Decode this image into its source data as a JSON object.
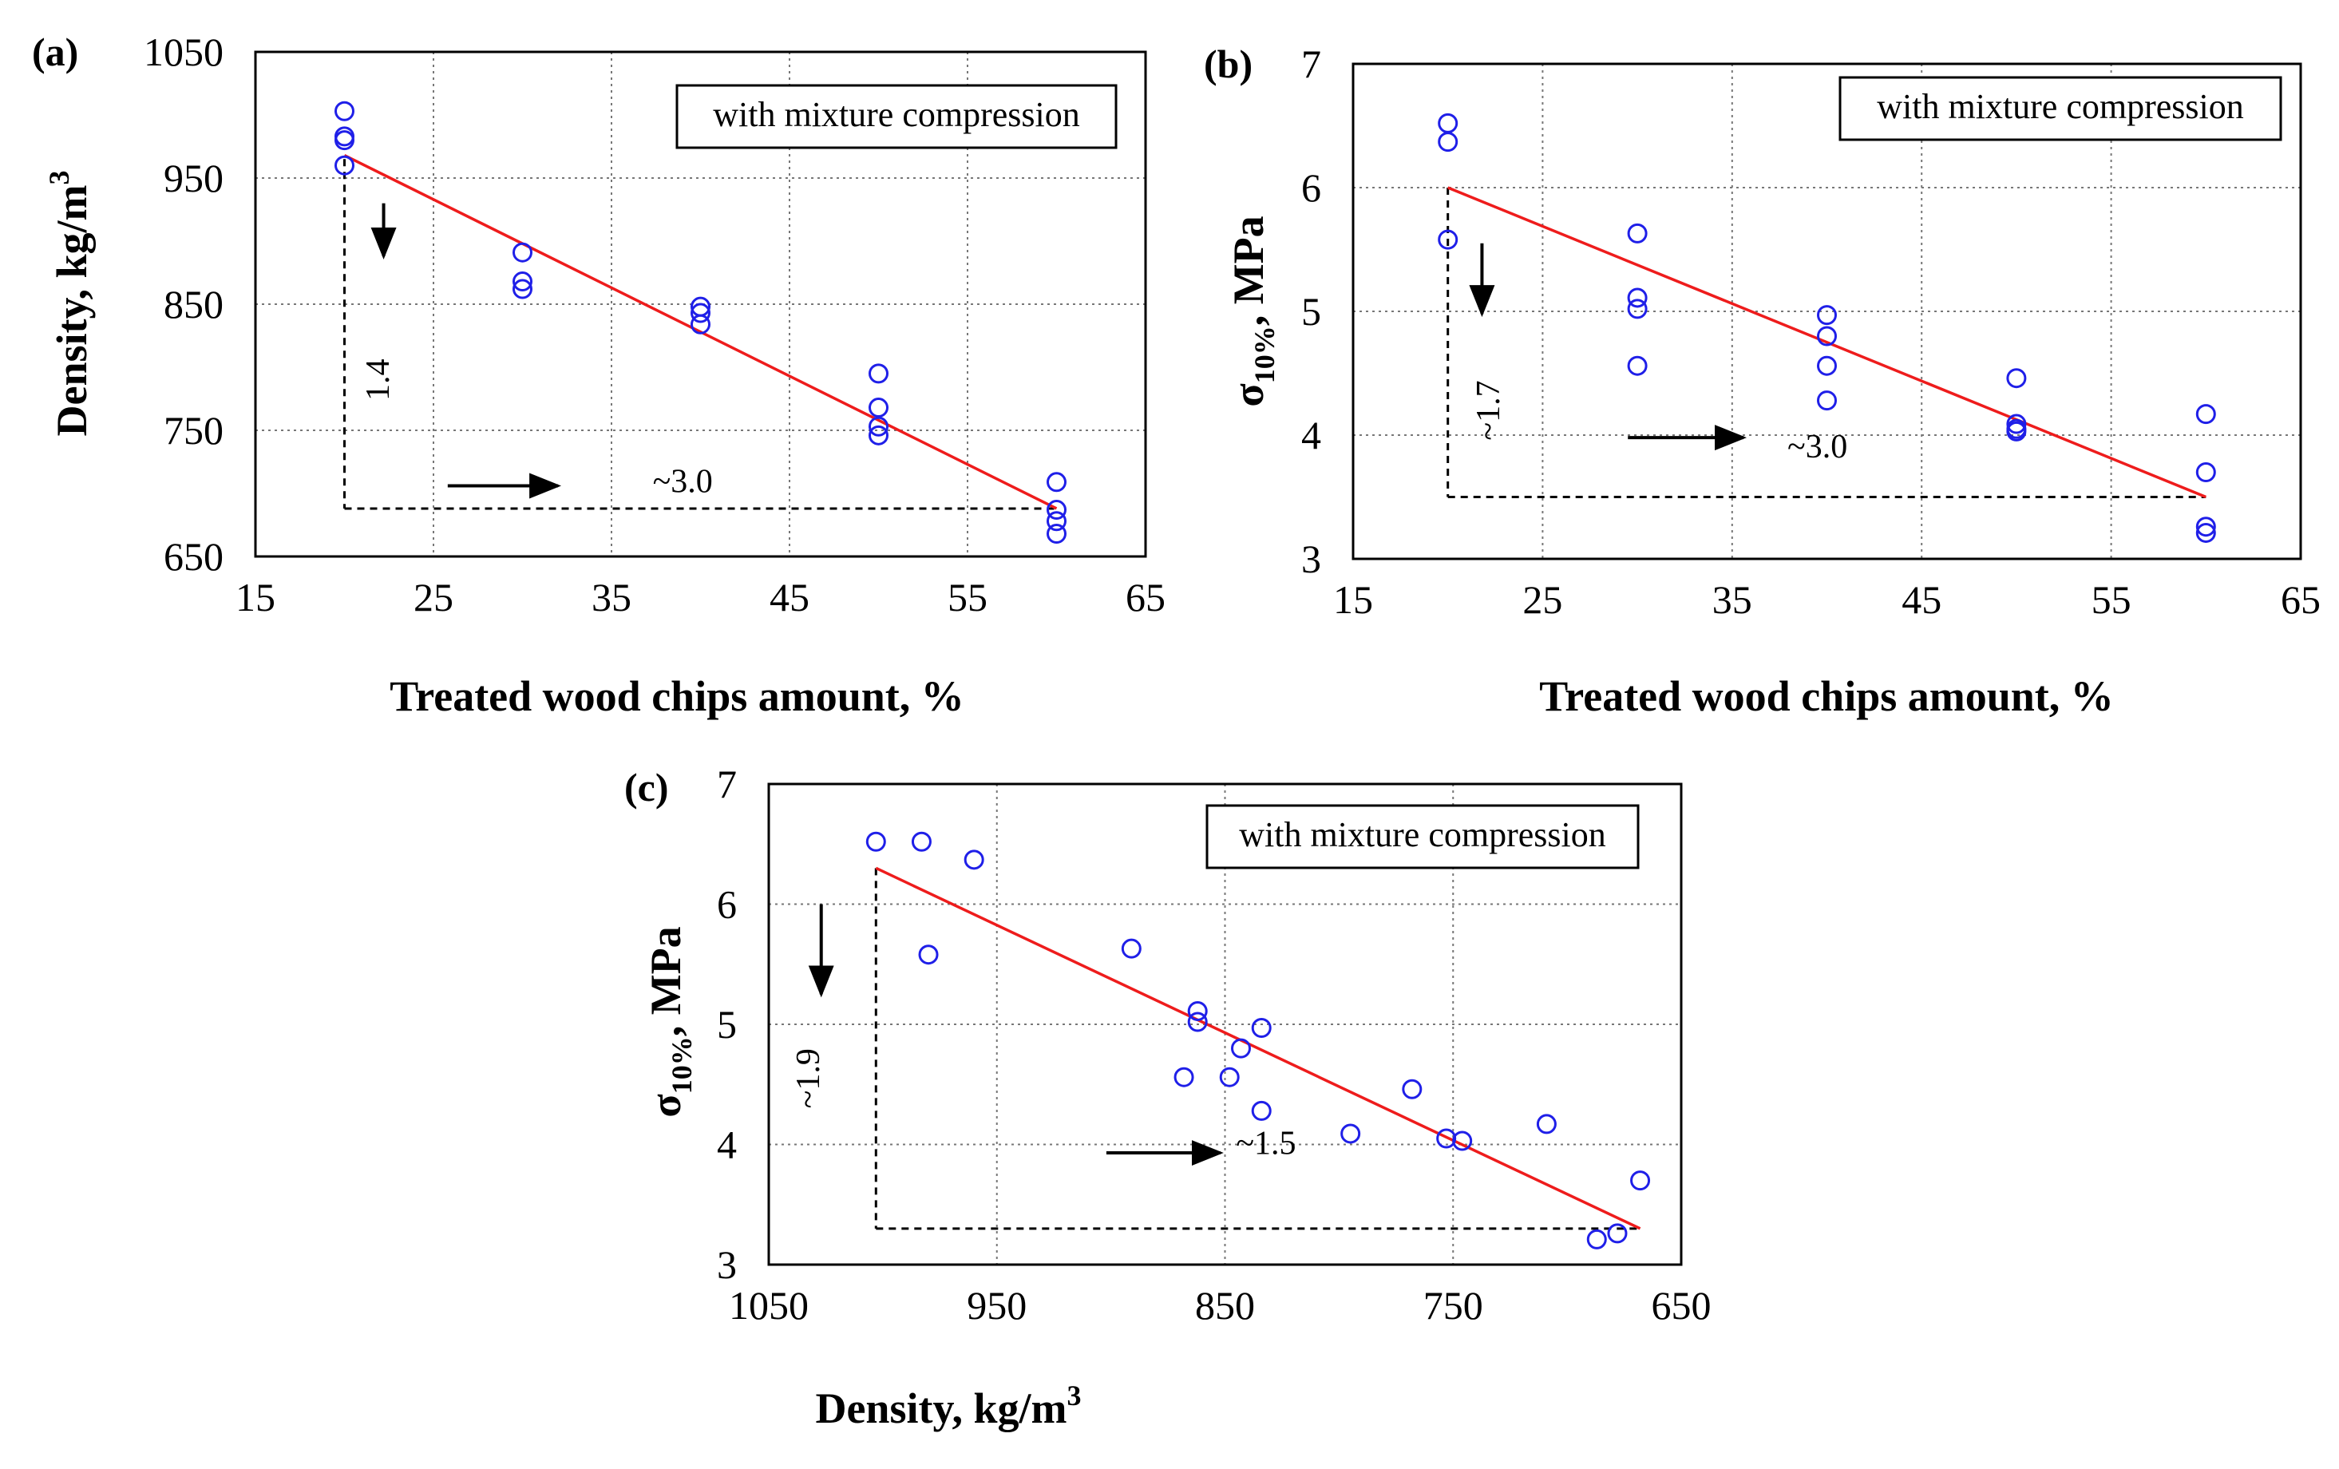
{
  "chart_data": [
    {
      "panel_label": "(a)",
      "type": "scatter",
      "legend": "with mixture compression",
      "xlabel": "Treated wood chips amount, %",
      "ylabel": "Density, kg/m",
      "ylabel_sup": "3",
      "xlim": [
        15,
        65
      ],
      "ylim": [
        650,
        1050
      ],
      "xticks": [
        15,
        25,
        35,
        45,
        55,
        65
      ],
      "yticks": [
        650,
        750,
        850,
        950,
        1050
      ],
      "grid": true,
      "points": [
        {
          "x": 20,
          "y": 1003
        },
        {
          "x": 20,
          "y": 983
        },
        {
          "x": 20,
          "y": 980
        },
        {
          "x": 20,
          "y": 960
        },
        {
          "x": 30,
          "y": 891
        },
        {
          "x": 30,
          "y": 868
        },
        {
          "x": 30,
          "y": 862
        },
        {
          "x": 40,
          "y": 848
        },
        {
          "x": 40,
          "y": 843
        },
        {
          "x": 40,
          "y": 834
        },
        {
          "x": 50,
          "y": 795
        },
        {
          "x": 50,
          "y": 768
        },
        {
          "x": 50,
          "y": 753
        },
        {
          "x": 50,
          "y": 746
        },
        {
          "x": 60,
          "y": 709
        },
        {
          "x": 60,
          "y": 687
        },
        {
          "x": 60,
          "y": 678
        },
        {
          "x": 60,
          "y": 668
        }
      ],
      "trend": {
        "x1": 20,
        "y1": 968,
        "x2": 60,
        "y2": 688
      },
      "guide": {
        "x1": 20,
        "y1": 965,
        "x2": 60,
        "y2": 688
      },
      "annotations": [
        {
          "text": "1.4",
          "x": 22.5,
          "y": 790,
          "rotate": true
        },
        {
          "text": "~3.0",
          "x": 39,
          "y": 701,
          "rotate": false
        }
      ],
      "arrows": [
        {
          "x1": 22.2,
          "y1": 930,
          "x2": 22.2,
          "y2": 888
        },
        {
          "x1": 25.8,
          "y1": 706,
          "x2": 32,
          "y2": 706
        }
      ]
    },
    {
      "panel_label": "(b)",
      "type": "scatter",
      "legend": "with mixture compression",
      "xlabel": "Treated wood chips amount, %",
      "ylabel": "σ",
      "ylabel_sub": "10%",
      "ylabel_tail": ", MPa",
      "xlim": [
        15,
        65
      ],
      "ylim": [
        3,
        7
      ],
      "xticks": [
        15,
        25,
        35,
        45,
        55,
        65
      ],
      "yticks": [
        3,
        4,
        5,
        6,
        7
      ],
      "grid": true,
      "points": [
        {
          "x": 20,
          "y": 6.52
        },
        {
          "x": 20,
          "y": 6.37
        },
        {
          "x": 20,
          "y": 5.58
        },
        {
          "x": 30,
          "y": 5.63
        },
        {
          "x": 30,
          "y": 5.11
        },
        {
          "x": 30,
          "y": 5.02
        },
        {
          "x": 30,
          "y": 4.56
        },
        {
          "x": 40,
          "y": 4.97
        },
        {
          "x": 40,
          "y": 4.8
        },
        {
          "x": 40,
          "y": 4.56
        },
        {
          "x": 40,
          "y": 4.28
        },
        {
          "x": 50,
          "y": 4.46
        },
        {
          "x": 50,
          "y": 4.09
        },
        {
          "x": 50,
          "y": 4.05
        },
        {
          "x": 50,
          "y": 4.03
        },
        {
          "x": 60,
          "y": 4.17
        },
        {
          "x": 60,
          "y": 3.7
        },
        {
          "x": 60,
          "y": 3.26
        },
        {
          "x": 60,
          "y": 3.21
        }
      ],
      "trend": {
        "x1": 20,
        "y1": 6.0,
        "x2": 60,
        "y2": 3.5
      },
      "guide": {
        "x1": 20,
        "y1": 6.0,
        "x2": 60,
        "y2": 3.5
      },
      "annotations": [
        {
          "text": "~1.7",
          "x": 22.7,
          "y": 4.2,
          "rotate": true
        },
        {
          "text": "~3.0",
          "x": 39.5,
          "y": 3.82,
          "rotate": false
        }
      ],
      "arrows": [
        {
          "x1": 21.8,
          "y1": 5.55,
          "x2": 21.8,
          "y2": 4.98
        },
        {
          "x1": 29.5,
          "y1": 3.98,
          "x2": 35.6,
          "y2": 3.98
        }
      ]
    },
    {
      "panel_label": "(c)",
      "type": "scatter",
      "legend": "with mixture compression",
      "xlabel": "Density, kg/m",
      "xlabel_sup": "3",
      "ylabel": "σ",
      "ylabel_sub": "10%",
      "ylabel_tail": ", MPa",
      "xlim": [
        1050,
        650
      ],
      "ylim": [
        3,
        7
      ],
      "xticks": [
        1050,
        950,
        850,
        750,
        650
      ],
      "yticks": [
        3,
        4,
        5,
        6,
        7
      ],
      "grid": true,
      "points": [
        {
          "x": 1003,
          "y": 6.52
        },
        {
          "x": 983,
          "y": 6.52
        },
        {
          "x": 960,
          "y": 6.37
        },
        {
          "x": 980,
          "y": 5.58
        },
        {
          "x": 891,
          "y": 5.63
        },
        {
          "x": 862,
          "y": 5.11
        },
        {
          "x": 862,
          "y": 5.02
        },
        {
          "x": 868,
          "y": 4.56
        },
        {
          "x": 834,
          "y": 4.97
        },
        {
          "x": 843,
          "y": 4.8
        },
        {
          "x": 848,
          "y": 4.56
        },
        {
          "x": 834,
          "y": 4.28
        },
        {
          "x": 768,
          "y": 4.46
        },
        {
          "x": 795,
          "y": 4.09
        },
        {
          "x": 753,
          "y": 4.05
        },
        {
          "x": 746,
          "y": 4.03
        },
        {
          "x": 709,
          "y": 4.17
        },
        {
          "x": 668,
          "y": 3.7
        },
        {
          "x": 678,
          "y": 3.26
        },
        {
          "x": 687,
          "y": 3.21
        }
      ],
      "trend": {
        "x1": 1003,
        "y1": 6.3,
        "x2": 668,
        "y2": 3.3
      },
      "guide": {
        "x1": 1003,
        "y1": 6.3,
        "x2": 668,
        "y2": 3.3
      },
      "annotations": [
        {
          "text": "~1.9",
          "x": 1028,
          "y": 4.55,
          "rotate": true
        },
        {
          "text": "~1.5",
          "x": 832,
          "y": 3.92,
          "rotate": false
        }
      ],
      "arrows": [
        {
          "x1": 1027,
          "y1": 6.0,
          "x2": 1027,
          "y2": 5.25
        },
        {
          "x1": 902,
          "y1": 3.93,
          "x2": 852,
          "y2": 3.93
        }
      ]
    }
  ]
}
